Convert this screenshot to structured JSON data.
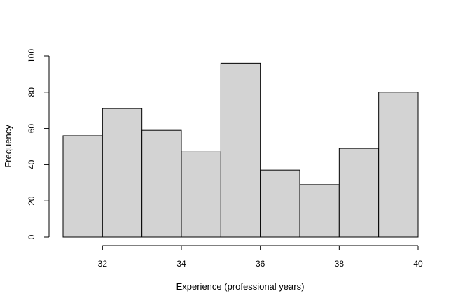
{
  "chart_data": {
    "type": "bar",
    "subtype": "histogram",
    "title": "",
    "xlabel": "Experience (professional years)",
    "ylabel": "Frequency",
    "bins": [
      {
        "start": 31,
        "end": 32,
        "value": 56
      },
      {
        "start": 32,
        "end": 33,
        "value": 71
      },
      {
        "start": 33,
        "end": 34,
        "value": 59
      },
      {
        "start": 34,
        "end": 35,
        "value": 47
      },
      {
        "start": 35,
        "end": 36,
        "value": 96
      },
      {
        "start": 36,
        "end": 37,
        "value": 37
      },
      {
        "start": 37,
        "end": 38,
        "value": 29
      },
      {
        "start": 38,
        "end": 39,
        "value": 49
      },
      {
        "start": 39,
        "end": 40,
        "value": 80
      }
    ],
    "xlim": [
      31,
      40
    ],
    "ylim": [
      0,
      100
    ],
    "xticks": [
      "32",
      "34",
      "36",
      "38",
      "40"
    ],
    "yticks": [
      "0",
      "20",
      "40",
      "60",
      "80",
      "100"
    ],
    "grid": false,
    "legend": "none",
    "bar_fill": "#d3d3d3",
    "bar_stroke": "#000000"
  }
}
